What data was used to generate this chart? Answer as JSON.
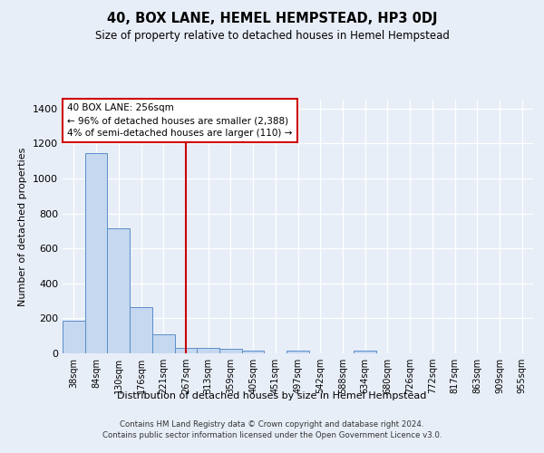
{
  "title": "40, BOX LANE, HEMEL HEMPSTEAD, HP3 0DJ",
  "subtitle": "Size of property relative to detached houses in Hemel Hempstead",
  "xlabel": "Distribution of detached houses by size in Hemel Hempstead",
  "ylabel": "Number of detached properties",
  "footer_line1": "Contains HM Land Registry data © Crown copyright and database right 2024.",
  "footer_line2": "Contains public sector information licensed under the Open Government Licence v3.0.",
  "categories": [
    "38sqm",
    "84sqm",
    "130sqm",
    "176sqm",
    "221sqm",
    "267sqm",
    "313sqm",
    "359sqm",
    "405sqm",
    "451sqm",
    "497sqm",
    "542sqm",
    "588sqm",
    "634sqm",
    "680sqm",
    "726sqm",
    "772sqm",
    "817sqm",
    "863sqm",
    "909sqm",
    "955sqm"
  ],
  "values": [
    185,
    1145,
    715,
    265,
    110,
    30,
    32,
    25,
    15,
    0,
    15,
    0,
    0,
    15,
    0,
    0,
    0,
    0,
    0,
    0,
    0
  ],
  "bar_color": "#c5d8f0",
  "bar_edge_color": "#5b8dc8",
  "vline_color": "#cc0000",
  "annotation_title": "40 BOX LANE: 256sqm",
  "annotation_line2": "← 96% of detached houses are smaller (2,388)",
  "annotation_line3": "4% of semi-detached houses are larger (110) →",
  "ylim": [
    0,
    1450
  ],
  "background_color": "#e8eef8",
  "plot_bg_color": "#e8eef8",
  "vline_x_index": 5.0
}
